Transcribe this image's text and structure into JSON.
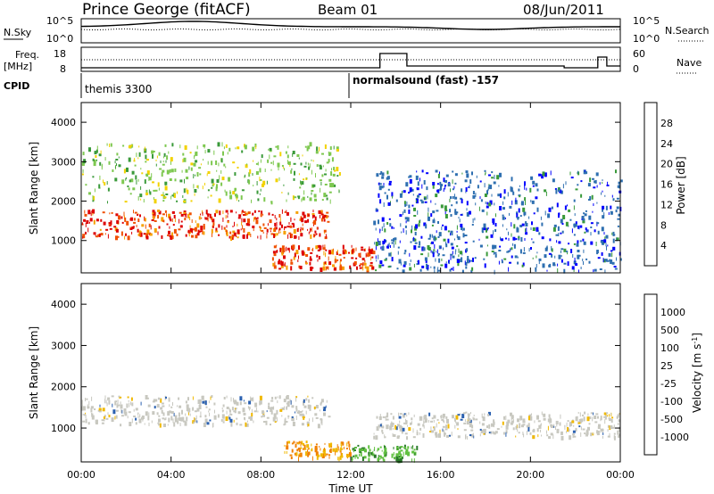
{
  "header": {
    "station": "Prince George (fitACF)",
    "beam": "Beam 01",
    "date": "08/Jun/2011"
  },
  "strip_panels": {
    "noise": {
      "left_label": "N.Sky",
      "right_label": "N.Search",
      "left_ticks": [
        "10^5",
        "10^0"
      ],
      "right_ticks": [
        "10^5",
        "10^0"
      ]
    },
    "freq": {
      "left_label_1": "Freq.",
      "left_label_2": "[MHz]",
      "right_label": "Nave",
      "left_ticks": [
        "18",
        "8"
      ],
      "right_ticks": [
        "60",
        "0"
      ]
    },
    "cpid": {
      "label": "CPID",
      "entries": [
        "themis 3300",
        "normalsound (fast) -157"
      ]
    }
  },
  "time_axis": {
    "label": "Time UT",
    "tick_labels": [
      "00:00",
      "04:00",
      "08:00",
      "12:00",
      "16:00",
      "20:00",
      "00:00"
    ]
  },
  "colors": {
    "power": [
      "#0000ff",
      "#2e6fb0",
      "#3a9a3a",
      "#7ec850",
      "#f2d200",
      "#f5a000",
      "#f05000",
      "#dd0000"
    ],
    "velocity": [
      "#dd0000",
      "#f04000",
      "#f08000",
      "#f0b800",
      "#c8c8c0",
      "#c8c8c0",
      "#60c040",
      "#2a7a2a",
      "#2a60b0",
      "#1e2aa0"
    ]
  },
  "chart_data": [
    {
      "type": "heatmap",
      "title": "Power",
      "ylabel": "Slant Range [km]",
      "xlabel": "",
      "y_ticks": [
        1000,
        2000,
        3000,
        4000
      ],
      "ylim": [
        180,
        4500
      ],
      "x_range_hours": [
        0,
        24
      ],
      "colorbar": {
        "label": "Power [dB]",
        "ticks": [
          "4",
          "8",
          "12",
          "16",
          "20",
          "24",
          "28"
        ]
      },
      "echo_regions": [
        {
          "t_start": 0.0,
          "t_end": 11.0,
          "r_low": 1100,
          "r_high": 1800,
          "level": "high"
        },
        {
          "t_start": 8.5,
          "t_end": 13.0,
          "r_low": 300,
          "r_high": 900,
          "level": "high"
        },
        {
          "t_start": 0.0,
          "t_end": 11.5,
          "r_low": 2000,
          "r_high": 3500,
          "level": "medium"
        },
        {
          "t_start": 13.0,
          "t_end": 24.0,
          "r_low": 250,
          "r_high": 1400,
          "level": "low"
        },
        {
          "t_start": 13.0,
          "t_end": 24.0,
          "r_low": 1400,
          "r_high": 2800,
          "level": "low"
        }
      ]
    },
    {
      "type": "heatmap",
      "title": "Velocity",
      "ylabel": "Slant Range [km]",
      "xlabel": "Time UT",
      "y_ticks": [
        1000,
        2000,
        3000,
        4000
      ],
      "ylim": [
        180,
        4500
      ],
      "x_range_hours": [
        0,
        24
      ],
      "colorbar": {
        "label": "Velocity [m s^-1]",
        "ticks": [
          "1000",
          "500",
          "100",
          "25",
          "-25",
          "-100",
          "-500",
          "-1000"
        ]
      },
      "echo_regions": [
        {
          "t_start": 0.0,
          "t_end": 11.0,
          "r_low": 1100,
          "r_high": 1800,
          "velocity": "near-zero"
        },
        {
          "t_start": 9.0,
          "t_end": 12.0,
          "r_low": 300,
          "r_high": 700,
          "velocity": "-100 to -500"
        },
        {
          "t_start": 12.0,
          "t_end": 15.0,
          "r_low": 250,
          "r_high": 600,
          "velocity": "25 to 100"
        },
        {
          "t_start": 13.0,
          "t_end": 24.0,
          "r_low": 800,
          "r_high": 1400,
          "velocity": "near-zero"
        }
      ]
    }
  ]
}
